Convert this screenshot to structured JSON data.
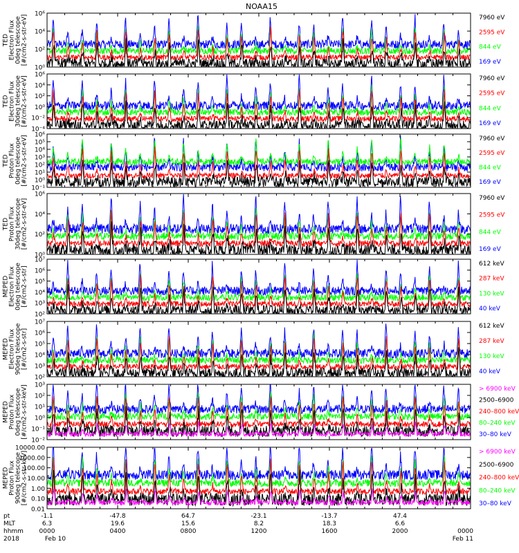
{
  "title": "NOAA15",
  "colors": {
    "black": "#000000",
    "blue": "#0000ff",
    "red": "#ff0000",
    "green": "#00ff00",
    "magenta": "#ff00ff"
  },
  "x_axis": {
    "range_hours": [
      0,
      24
    ],
    "row_labels": [
      "pt",
      "MLT",
      "hhmm",
      "2018"
    ],
    "ticks": [
      {
        "t": 0,
        "pt": "-1.1",
        "mlt": "6.3",
        "hhmm": "0000",
        "date": "Feb 10"
      },
      {
        "t": 4,
        "pt": "-47.8",
        "mlt": "19.6",
        "hhmm": "0400",
        "date": ""
      },
      {
        "t": 8,
        "pt": "64.7",
        "mlt": "15.6",
        "hhmm": "0800",
        "date": ""
      },
      {
        "t": 12,
        "pt": "-23.1",
        "mlt": "8.2",
        "hhmm": "1200",
        "date": ""
      },
      {
        "t": 16,
        "pt": "-13.7",
        "mlt": "18.3",
        "hhmm": "1600",
        "date": ""
      },
      {
        "t": 20,
        "pt": "47.4",
        "mlt": "6.6",
        "hhmm": "2000",
        "date": ""
      },
      {
        "t": 24,
        "pt": "",
        "mlt": "",
        "hhmm": "0000",
        "date": "Feb 11"
      }
    ]
  },
  "chart_data": [
    {
      "type": "line",
      "ylabel_lines": [
        "TED",
        "Electron Flux",
        "0deg telescope",
        "[#/cm2-s-str-eV]"
      ],
      "ylim": [
        1,
        1000000
      ],
      "yscale": "log",
      "ytick_labels": [
        "10⁰",
        "10²",
        "10⁴",
        "10⁶"
      ],
      "series": [
        {
          "name": "7960 eV",
          "color": "black"
        },
        {
          "name": "2595 eV",
          "color": "red"
        },
        {
          "name": "844 eV",
          "color": "green"
        },
        {
          "name": "169 eV",
          "color": "blue"
        }
      ]
    },
    {
      "type": "line",
      "ylabel_lines": [
        "TED",
        "Electron Flux",
        "30deg telescope",
        "[#/cm2-s-str-eV]"
      ],
      "ylim": [
        0.0001,
        1000000
      ],
      "yscale": "log",
      "ytick_labels": [
        "10⁻⁴",
        "10⁻²",
        "10⁰",
        "10²",
        "10⁴",
        "10⁶"
      ],
      "series": [
        {
          "name": "7960 eV",
          "color": "black"
        },
        {
          "name": "2595 eV",
          "color": "red"
        },
        {
          "name": "844 eV",
          "color": "green"
        },
        {
          "name": "169 eV",
          "color": "blue"
        }
      ]
    },
    {
      "type": "line",
      "ylabel_lines": [
        "TED",
        "Proton Flux",
        "0deg telescope",
        "[#/cm2-s-str-eV]"
      ],
      "ylim": [
        0.1,
        1000000
      ],
      "yscale": "log",
      "ytick_labels": [
        "10⁻¹",
        "10⁰",
        "10¹",
        "10²",
        "10³",
        "10⁴",
        "10⁵",
        "10⁶"
      ],
      "series": [
        {
          "name": "7960 eV",
          "color": "black"
        },
        {
          "name": "2595 eV",
          "color": "red"
        },
        {
          "name": "844 eV",
          "color": "green"
        },
        {
          "name": "169 eV",
          "color": "blue"
        }
      ]
    },
    {
      "type": "line",
      "ylabel_lines": [
        "TED",
        "Proton Flux",
        "30deg telescope",
        "[#/cm2-s-str-eV]"
      ],
      "ylim": [
        1,
        1000000
      ],
      "yscale": "log",
      "ytick_labels": [
        "10⁰",
        "10²",
        "10⁴",
        "10⁶"
      ],
      "series": [
        {
          "name": "7960 eV",
          "color": "black"
        },
        {
          "name": "2595 eV",
          "color": "red"
        },
        {
          "name": "844 eV",
          "color": "green"
        },
        {
          "name": "169 eV",
          "color": "blue"
        }
      ]
    },
    {
      "type": "line",
      "ylabel_lines": [
        "MEPED",
        "Electron Flux",
        "0deg telescope",
        "[#/cm2-s-str]"
      ],
      "ylim": [
        100,
        10000000
      ],
      "yscale": "log",
      "ytick_labels": [
        "10²",
        "10³",
        "10⁴",
        "10⁵",
        "10⁶",
        "10⁷"
      ],
      "series": [
        {
          "name": "612 keV",
          "color": "black"
        },
        {
          "name": "287 keV",
          "color": "red"
        },
        {
          "name": "130 keV",
          "color": "green"
        },
        {
          "name": "40 keV",
          "color": "blue"
        }
      ]
    },
    {
      "type": "line",
      "ylabel_lines": [
        "MEPED",
        "Electron Flux",
        "90deg telescope",
        "[#/cm2-s-str]"
      ],
      "ylim": [
        100,
        10000000
      ],
      "yscale": "log",
      "ytick_labels": [
        "10²",
        "10³",
        "10⁴",
        "10⁵",
        "10⁶",
        "10⁷"
      ],
      "series": [
        {
          "name": "612 keV",
          "color": "black"
        },
        {
          "name": "287 keV",
          "color": "red"
        },
        {
          "name": "130 keV",
          "color": "green"
        },
        {
          "name": "40 keV",
          "color": "blue"
        }
      ]
    },
    {
      "type": "line",
      "ylabel_lines": [
        "MEPED",
        "Proton Flux",
        "0deg telescope",
        "[#/cm2-s-str-keV]"
      ],
      "ylim": [
        0.01,
        1000
      ],
      "yscale": "log",
      "ytick_labels": [
        "10⁻²",
        "10⁻¹",
        "10⁰",
        "10¹",
        "10²",
        "10³"
      ],
      "series": [
        {
          "name": "> 6900 keV",
          "color": "magenta"
        },
        {
          "name": "2500–6900",
          "color": "black"
        },
        {
          "name": "240–800 keV",
          "color": "red"
        },
        {
          "name": "80–240 keV",
          "color": "green"
        },
        {
          "name": "30–80 keV",
          "color": "blue"
        }
      ]
    },
    {
      "type": "line",
      "ylabel_lines": [
        "MEPED",
        "Proton Flux",
        "90deg telescope",
        "[#/cm2-s-str-keV]"
      ],
      "ylim": [
        0.01,
        10000
      ],
      "yscale": "log",
      "ytick_labels": [
        "0.01",
        "0.10",
        "1.00",
        "10.00",
        "100.00",
        "1000.00",
        "10000.00"
      ],
      "series": [
        {
          "name": "> 6900 keV",
          "color": "magenta"
        },
        {
          "name": "2500–6900",
          "color": "black"
        },
        {
          "name": "240–800 keV",
          "color": "red"
        },
        {
          "name": "80–240 keV",
          "color": "green"
        },
        {
          "name": "30–80 keV",
          "color": "blue"
        }
      ]
    }
  ]
}
